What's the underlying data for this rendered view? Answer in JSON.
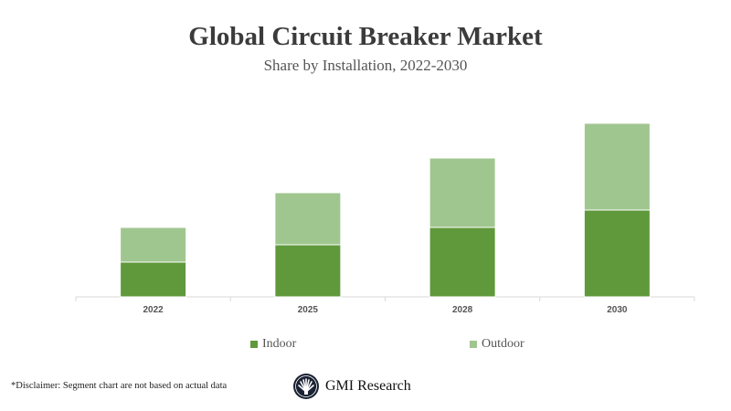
{
  "chart_data": {
    "type": "bar",
    "stacked": true,
    "title": "Global Circuit Breaker Market",
    "subtitle": "Share by Installation, 2022-2030",
    "categories": [
      "2022",
      "2025",
      "2028",
      "2030"
    ],
    "series": [
      {
        "name": "Indoor",
        "color": "#5f993b",
        "values": [
          2,
          3,
          4,
          5
        ]
      },
      {
        "name": "Outdoor",
        "color": "#a0c68f",
        "values": [
          2,
          3,
          4,
          5
        ]
      }
    ],
    "ylim": [
      0,
      10
    ],
    "y_axis_shown": false,
    "grid": false,
    "legend_position": "bottom"
  },
  "footer": {
    "disclaimer": "*Disclaimer:  Segment chart are not based on actual data",
    "logo_text": "GMI Research"
  }
}
